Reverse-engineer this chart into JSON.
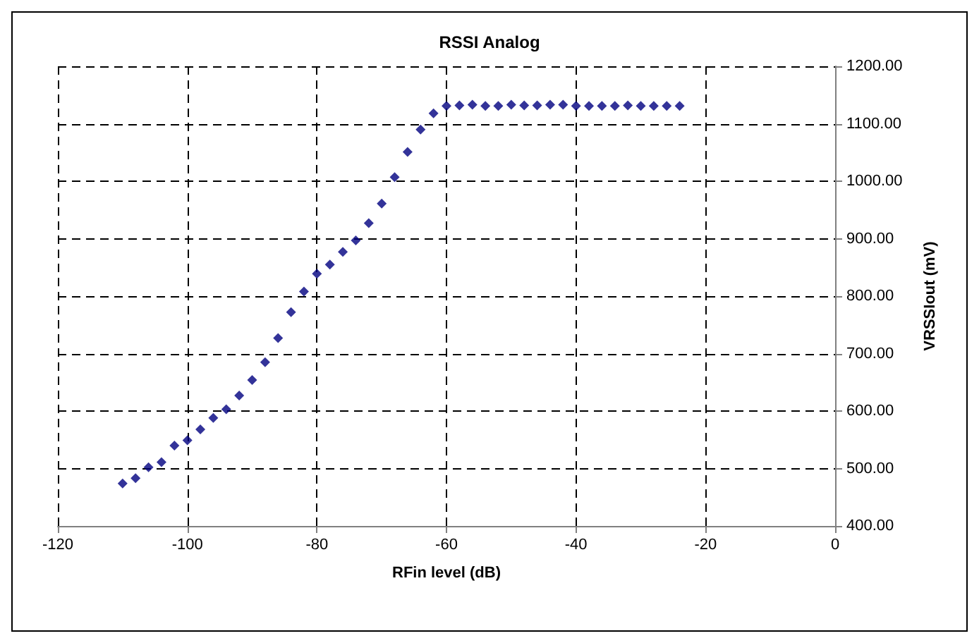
{
  "chart_data": {
    "type": "scatter",
    "title": "RSSI Analog",
    "xlabel": "RFin level (dB)",
    "ylabel": "VRSSIout (mV)",
    "x": [
      -110,
      -108,
      -106,
      -104,
      -102,
      -100,
      -98,
      -96,
      -94,
      -92,
      -90,
      -88,
      -86,
      -84,
      -82,
      -80,
      -78,
      -76,
      -74,
      -72,
      -70,
      -68,
      -66,
      -64,
      -62,
      -60,
      -58,
      -56,
      -54,
      -52,
      -50,
      -48,
      -46,
      -44,
      -42,
      -40,
      -38,
      -36,
      -34,
      -32,
      -30,
      -28,
      -26,
      -24
    ],
    "series": [
      {
        "color": "#000080",
        "values": [
          474,
          483,
          502,
          511,
          540,
          549,
          568,
          588,
          603,
          627,
          654,
          685,
          727,
          772,
          808,
          839,
          855,
          877,
          897,
          927,
          961,
          1007,
          1051,
          1090,
          1118,
          1131,
          1132,
          1133,
          1131,
          1131,
          1133,
          1132,
          1132,
          1133,
          1133,
          1131,
          1131,
          1131,
          1131,
          1132,
          1131,
          1131,
          1131,
          1131
        ]
      }
    ],
    "xlim": [
      -120,
      0
    ],
    "xticks": [
      -120,
      -100,
      -80,
      -60,
      -40,
      -20,
      0
    ],
    "ylim": [
      400,
      1200
    ],
    "yticks": [
      {
        "value": 400,
        "label": "400.00"
      },
      {
        "value": 500,
        "label": "500.00"
      },
      {
        "value": 600,
        "label": "600.00"
      },
      {
        "value": 700,
        "label": "700.00"
      },
      {
        "value": 800,
        "label": "800.00"
      },
      {
        "value": 900,
        "label": "900.00"
      },
      {
        "value": 1000,
        "label": "1000.00"
      },
      {
        "value": 1100,
        "label": "1100.00"
      },
      {
        "value": 1200,
        "label": "1200.00"
      }
    ],
    "grid": true,
    "marker": "diamond"
  }
}
